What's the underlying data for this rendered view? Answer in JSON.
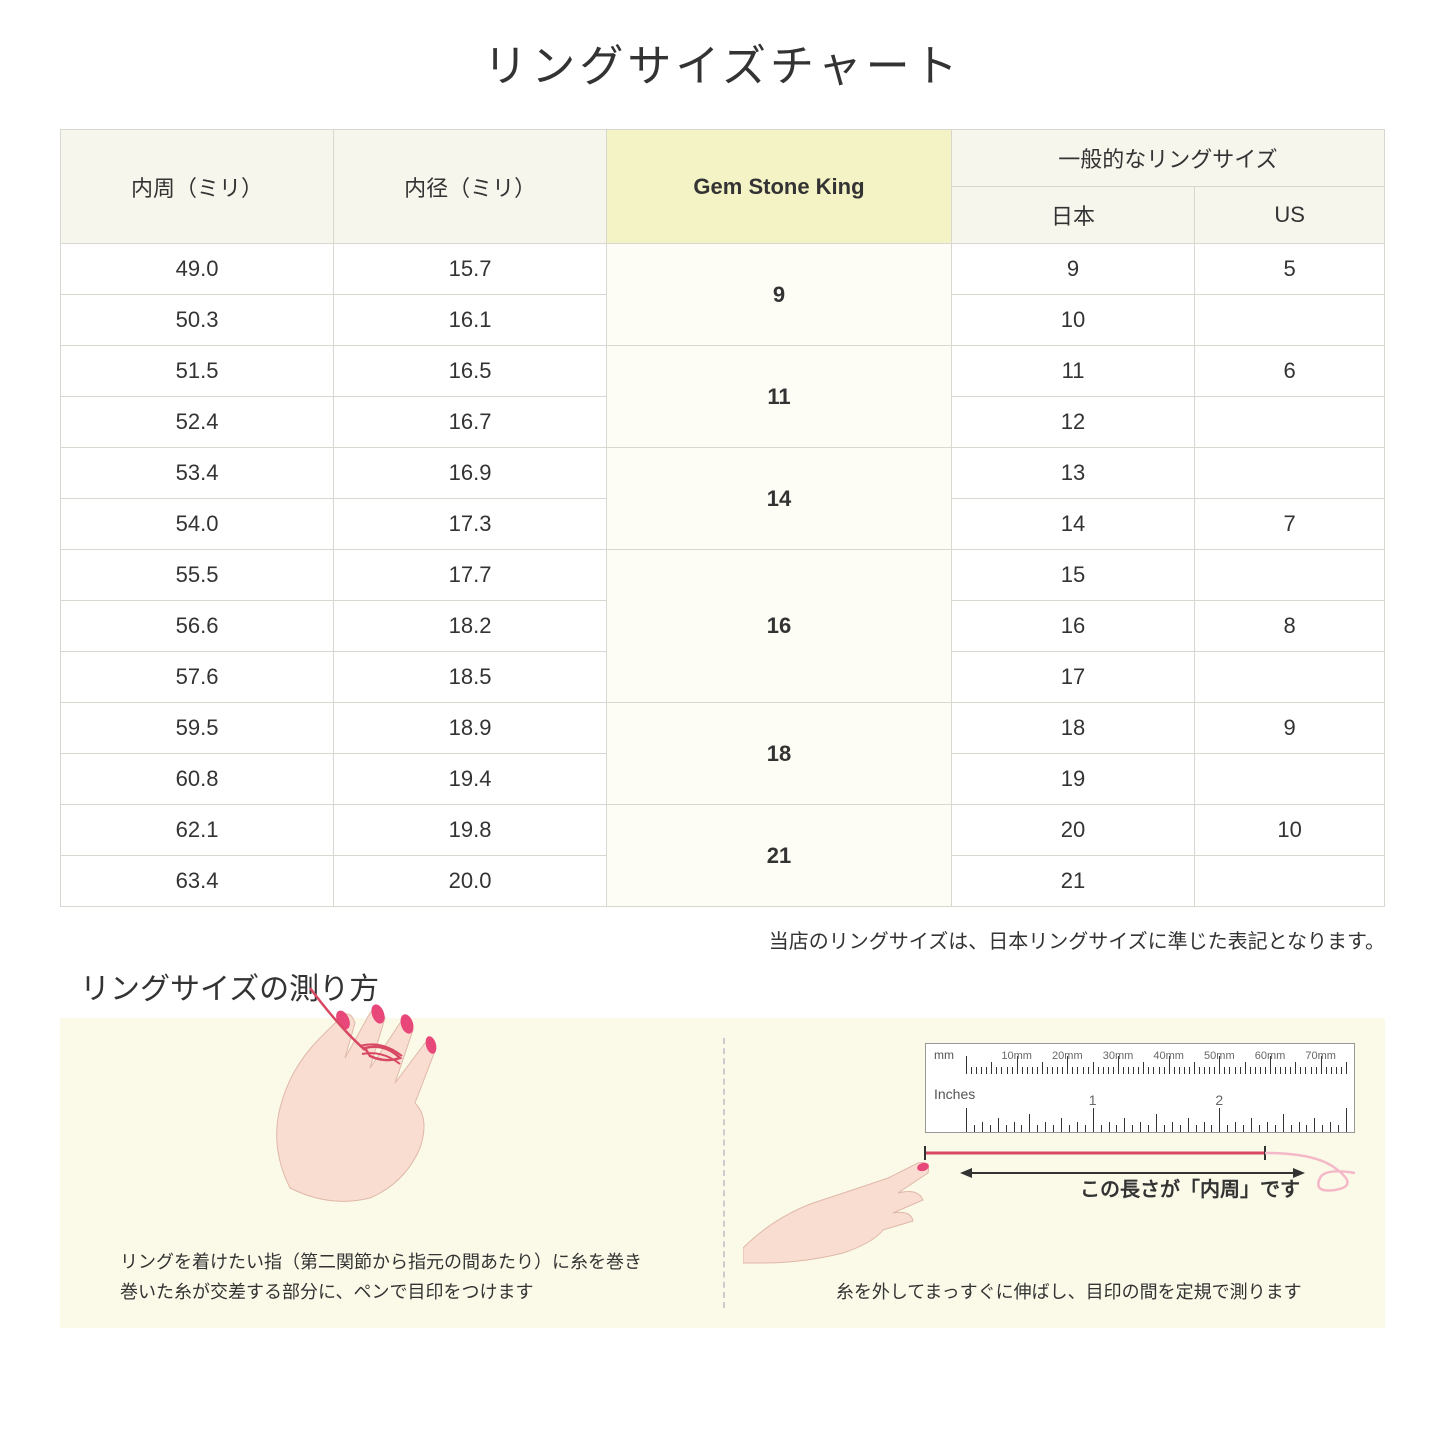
{
  "title": "リングサイズチャート",
  "table": {
    "headers": {
      "circumference": "内周（ミリ）",
      "diameter": "内径（ミリ）",
      "gsk": "Gem Stone King",
      "general": "一般的なリングサイズ",
      "japan": "日本",
      "us": "US"
    },
    "groups": [
      {
        "gsk": "9",
        "rows": [
          {
            "c": "49.0",
            "d": "15.7",
            "jp": "9",
            "us": "5"
          },
          {
            "c": "50.3",
            "d": "16.1",
            "jp": "10",
            "us": ""
          }
        ]
      },
      {
        "gsk": "11",
        "rows": [
          {
            "c": "51.5",
            "d": "16.5",
            "jp": "11",
            "us": "6"
          },
          {
            "c": "52.4",
            "d": "16.7",
            "jp": "12",
            "us": ""
          }
        ]
      },
      {
        "gsk": "14",
        "rows": [
          {
            "c": "53.4",
            "d": "16.9",
            "jp": "13",
            "us": ""
          },
          {
            "c": "54.0",
            "d": "17.3",
            "jp": "14",
            "us": "7"
          }
        ]
      },
      {
        "gsk": "16",
        "rows": [
          {
            "c": "55.5",
            "d": "17.7",
            "jp": "15",
            "us": ""
          },
          {
            "c": "56.6",
            "d": "18.2",
            "jp": "16",
            "us": "8"
          },
          {
            "c": "57.6",
            "d": "18.5",
            "jp": "17",
            "us": ""
          }
        ]
      },
      {
        "gsk": "18",
        "rows": [
          {
            "c": "59.5",
            "d": "18.9",
            "jp": "18",
            "us": "9"
          },
          {
            "c": "60.8",
            "d": "19.4",
            "jp": "19",
            "us": ""
          }
        ]
      },
      {
        "gsk": "21",
        "rows": [
          {
            "c": "62.1",
            "d": "19.8",
            "jp": "20",
            "us": "10"
          },
          {
            "c": "63.4",
            "d": "20.0",
            "jp": "21",
            "us": ""
          }
        ]
      }
    ]
  },
  "note": "当店のリングサイズは、日本リングサイズに準じた表記となります。",
  "howto": {
    "title": "リングサイズの測り方",
    "left_text_1": "リングを着けたい指（第二関節から指元の間あたり）に糸を巻き",
    "left_text_2": "巻いた糸が交差する部分に、ペンで目印をつけます",
    "right_label": "この長さが「内周」です",
    "right_text": "糸を外してまっすぐに伸ばし、目印の間を定規で測ります"
  },
  "ruler": {
    "mm_label": "mm",
    "inches_label": "Inches",
    "mm_ticks": [
      "10mm",
      "20mm",
      "30mm",
      "40mm",
      "50mm",
      "60mm",
      "70mm"
    ],
    "inch_ticks": [
      "1",
      "2"
    ]
  },
  "colors": {
    "header_bg": "#f7f6ed",
    "highlight_bg": "#f4f3c5",
    "panel_bg": "#fbfae8",
    "skin": "#f8ddd0",
    "nail": "#e8477a",
    "thread": "#d94863",
    "border": "#d8d8d0"
  }
}
